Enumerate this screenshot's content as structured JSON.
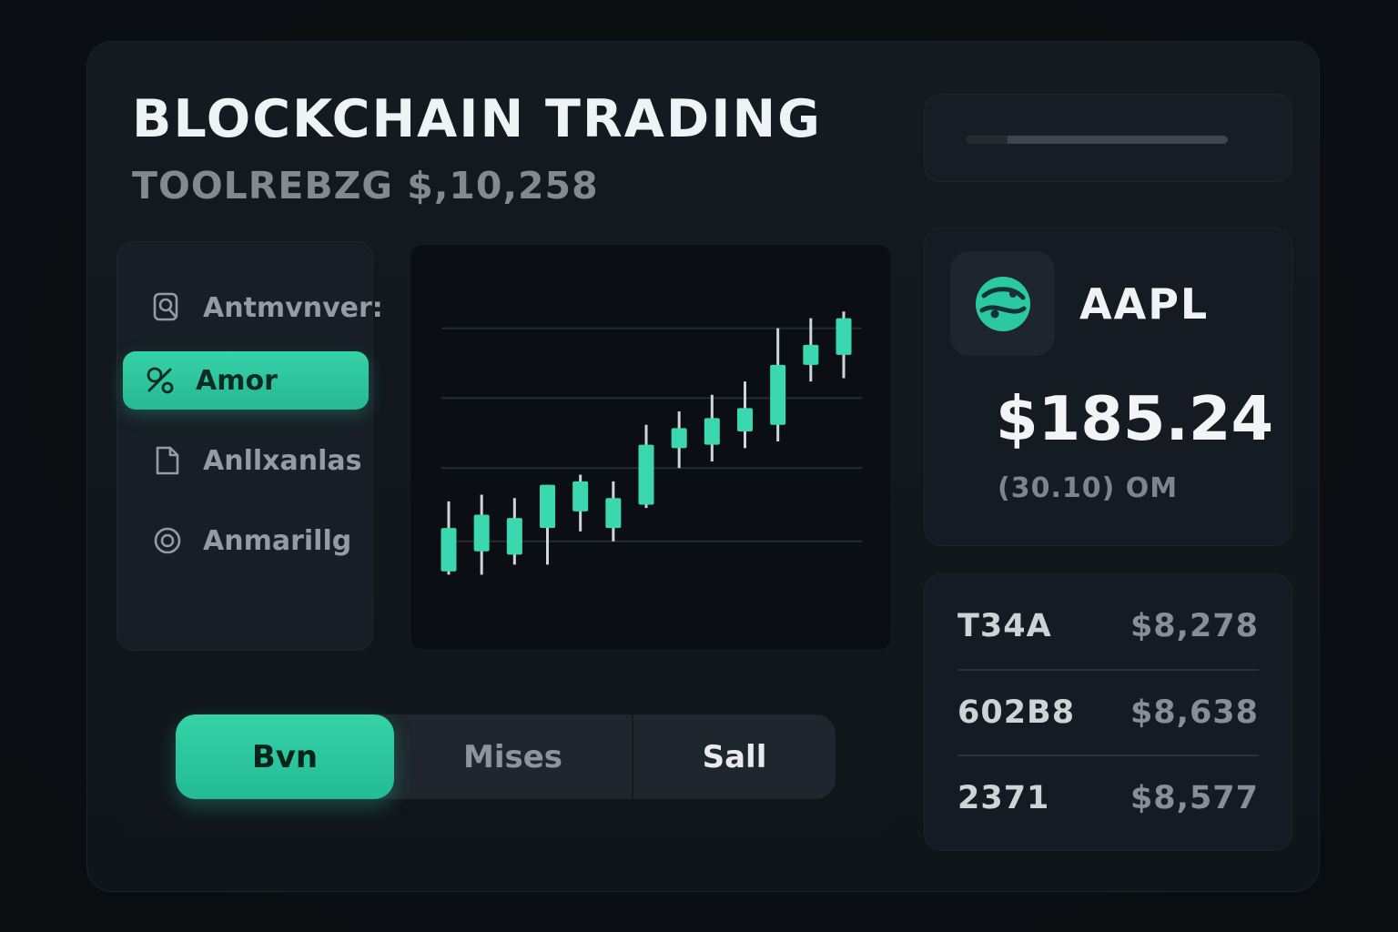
{
  "app": {
    "title": "BLOCKCHAIN TRADING",
    "subtitle": "TOOLREBZG $,10,258"
  },
  "sidebar": {
    "items": [
      {
        "label": "Antmvnver:",
        "icon": "search-icon",
        "active": false
      },
      {
        "label": "Amor",
        "icon": "chart-icon",
        "active": true
      },
      {
        "label": "Anllxanlas",
        "icon": "document-icon",
        "active": false
      },
      {
        "label": "Anmarillg",
        "icon": "target-icon",
        "active": false
      }
    ]
  },
  "actions": {
    "buttons": [
      {
        "label": "Bvn",
        "active": true
      },
      {
        "label": "Mises",
        "active": false
      },
      {
        "label": "Sall",
        "active": false
      }
    ]
  },
  "ticker": {
    "symbol": "AAPL",
    "price": "$185.24",
    "change": "(30.10) OM",
    "logo": "globe-icon"
  },
  "watchlist": {
    "rows": [
      {
        "symbol": "T34A",
        "price": "$8,278"
      },
      {
        "symbol": "602B8",
        "price": "$8,638"
      },
      {
        "symbol": "2371",
        "price": "$8,577"
      }
    ]
  },
  "colors": {
    "accent": "#2fc9a2",
    "candle_body": "#3bd8b0",
    "candle_wick": "#cfd4d9",
    "grid_line": "#262c33",
    "card_bg": "#151b22",
    "panel_bg": "#12171d"
  },
  "chart_data": {
    "type": "candlestick",
    "title": "",
    "xlabel": "",
    "ylabel": "",
    "ylim": [
      8,
      96
    ],
    "gridlines": [
      86,
      65,
      44,
      22
    ],
    "legend": false,
    "candles": [
      {
        "open": 13,
        "high": 34,
        "low": 12,
        "close": 26
      },
      {
        "open": 19,
        "high": 36,
        "low": 12,
        "close": 30
      },
      {
        "open": 18,
        "high": 35,
        "low": 15,
        "close": 29
      },
      {
        "open": 26,
        "high": 39,
        "low": 15,
        "close": 39
      },
      {
        "open": 31,
        "high": 42,
        "low": 25,
        "close": 40
      },
      {
        "open": 26,
        "high": 40,
        "low": 22,
        "close": 35
      },
      {
        "open": 33,
        "high": 57,
        "low": 32,
        "close": 51
      },
      {
        "open": 50,
        "high": 61,
        "low": 44,
        "close": 56
      },
      {
        "open": 51,
        "high": 66,
        "low": 46,
        "close": 59
      },
      {
        "open": 55,
        "high": 70,
        "low": 50,
        "close": 62
      },
      {
        "open": 57,
        "high": 86,
        "low": 52,
        "close": 75
      },
      {
        "open": 75,
        "high": 89,
        "low": 70,
        "close": 81
      },
      {
        "open": 78,
        "high": 91,
        "low": 71,
        "close": 89
      }
    ]
  }
}
